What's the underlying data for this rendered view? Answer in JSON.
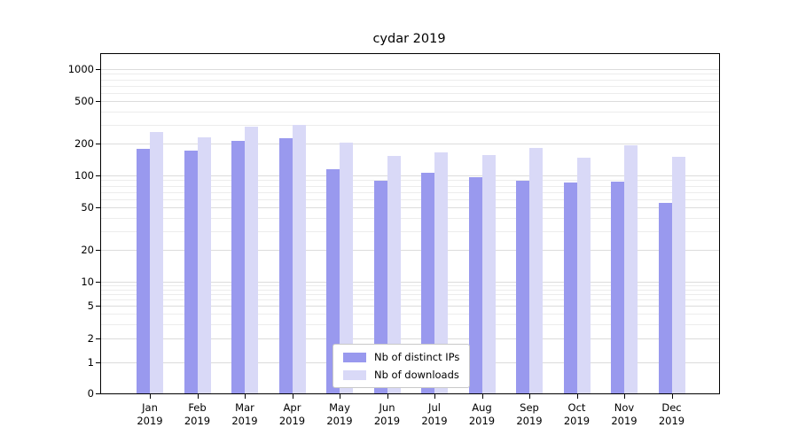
{
  "chart_data": {
    "type": "bar",
    "title": "cydar 2019",
    "scale": "symlog",
    "grid": "horizontal",
    "categories": [
      "Jan",
      "Feb",
      "Mar",
      "Apr",
      "May",
      "Jun",
      "Jul",
      "Aug",
      "Sep",
      "Oct",
      "Nov",
      "Dec"
    ],
    "year": "2019",
    "series": [
      {
        "name": "Nb of distinct IPs",
        "color": "#9999ee",
        "values": [
          178,
          170,
          212,
          222,
          115,
          90,
          106,
          96,
          90,
          86,
          88,
          55
        ]
      },
      {
        "name": "Nb of downloads",
        "color": "#d9d9f7",
        "values": [
          255,
          230,
          290,
          300,
          205,
          152,
          165,
          155,
          183,
          148,
          192,
          150
        ]
      }
    ],
    "yticks": [
      0,
      1,
      2,
      5,
      10,
      20,
      50,
      100,
      200,
      500,
      1000
    ],
    "ylim": [
      0,
      1000
    ],
    "legend_position": "bottom-center"
  }
}
